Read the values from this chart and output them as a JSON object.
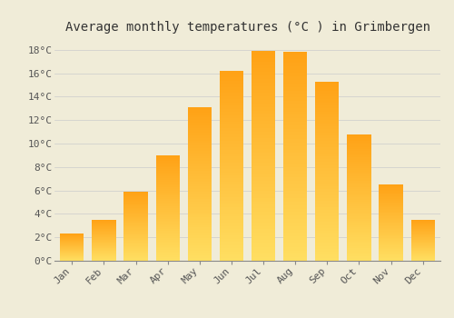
{
  "title": "Average monthly temperatures (°C ) in Grimbergen",
  "months": [
    "Jan",
    "Feb",
    "Mar",
    "Apr",
    "May",
    "Jun",
    "Jul",
    "Aug",
    "Sep",
    "Oct",
    "Nov",
    "Dec"
  ],
  "values": [
    2.3,
    3.5,
    5.9,
    9.0,
    13.1,
    16.2,
    17.9,
    17.8,
    15.3,
    10.8,
    6.5,
    3.5
  ],
  "bar_color": "#FFA820",
  "bar_color_light": "#FFD060",
  "ylim": [
    0,
    19
  ],
  "yticks": [
    0,
    2,
    4,
    6,
    8,
    10,
    12,
    14,
    16,
    18
  ],
  "ytick_labels": [
    "0°C",
    "2°C",
    "4°C",
    "6°C",
    "8°C",
    "10°C",
    "12°C",
    "14°C",
    "16°C",
    "18°C"
  ],
  "background_color": "#F0ECD8",
  "grid_color": "#CCCCCC",
  "title_fontsize": 10,
  "tick_fontsize": 8,
  "bar_width": 0.75
}
